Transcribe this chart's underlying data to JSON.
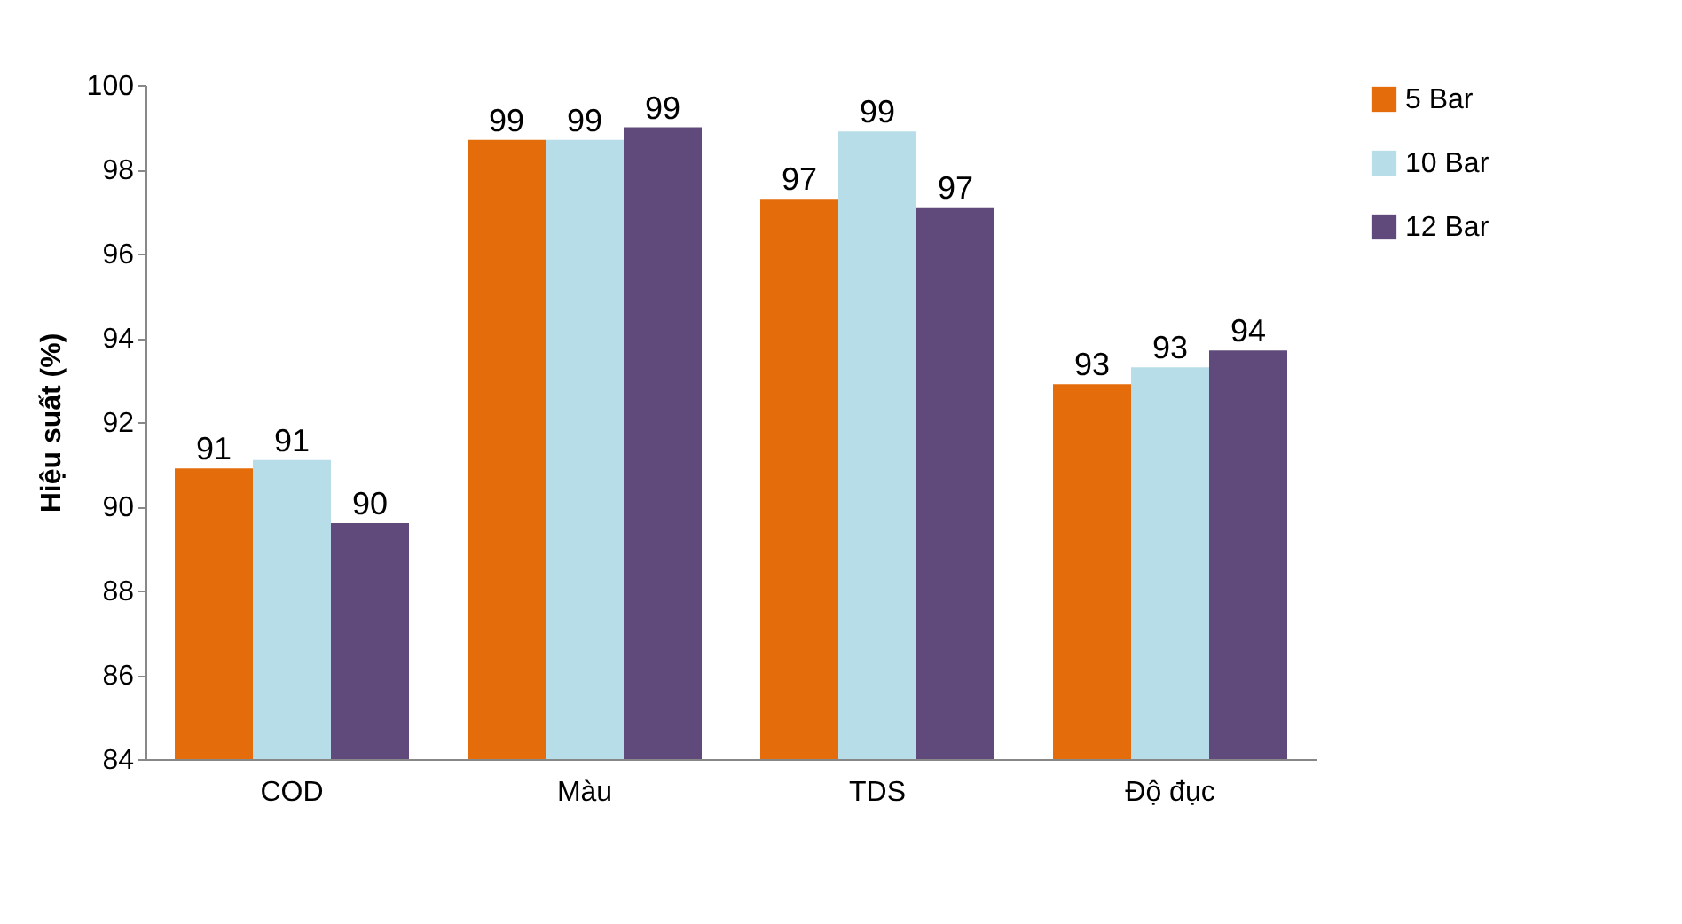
{
  "chart_data": {
    "type": "bar",
    "ylabel": "Hiệu suất (%)",
    "categories": [
      "COD",
      "Màu",
      "TDS",
      "Độ đục"
    ],
    "series": [
      {
        "name": "5 Bar",
        "color": "#e46c0a",
        "values": [
          90.9,
          98.7,
          97.3,
          92.9
        ],
        "value_labels": [
          "91",
          "99",
          "97",
          "93"
        ]
      },
      {
        "name": "10 Bar",
        "color": "#b7dde8",
        "values": [
          91.1,
          98.7,
          98.9,
          93.3
        ],
        "value_labels": [
          "91",
          "99",
          "99",
          "93"
        ]
      },
      {
        "name": "12 Bar",
        "color": "#604a7b",
        "values": [
          89.6,
          99.0,
          97.1,
          93.7
        ],
        "value_labels": [
          "90",
          "99",
          "97",
          "94"
        ]
      }
    ],
    "ylim": [
      84,
      100
    ],
    "yticks": [
      84,
      86,
      88,
      90,
      92,
      94,
      96,
      98,
      100
    ],
    "grid": false,
    "legend": "right"
  }
}
